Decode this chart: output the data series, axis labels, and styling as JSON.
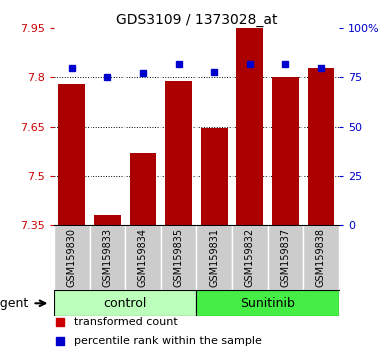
{
  "title": "GDS3109 / 1373028_at",
  "samples": [
    "GSM159830",
    "GSM159833",
    "GSM159834",
    "GSM159835",
    "GSM159831",
    "GSM159832",
    "GSM159837",
    "GSM159838"
  ],
  "red_values": [
    7.78,
    7.38,
    7.57,
    7.79,
    7.645,
    7.95,
    7.8,
    7.83
  ],
  "blue_values": [
    80,
    75,
    77,
    82,
    78,
    82,
    82,
    80
  ],
  "groups": [
    {
      "label": "control",
      "start": 0,
      "end": 4,
      "color": "#bbffbb"
    },
    {
      "label": "Sunitinib",
      "start": 4,
      "end": 8,
      "color": "#44ee44"
    }
  ],
  "group_label": "agent",
  "ylim_left": [
    7.35,
    7.95
  ],
  "ylim_right": [
    0,
    100
  ],
  "yticks_left": [
    7.35,
    7.5,
    7.65,
    7.8,
    7.95
  ],
  "ytick_labels_left": [
    "7.35",
    "7.5",
    "7.65",
    "7.8",
    "7.95"
  ],
  "yticks_right": [
    0,
    25,
    50,
    75,
    100
  ],
  "ytick_labels_right": [
    "0",
    "25",
    "50",
    "75",
    "100%"
  ],
  "hlines": [
    7.5,
    7.65,
    7.8
  ],
  "bar_color": "#aa0000",
  "dot_color": "#0000cc",
  "bar_width": 0.75,
  "background_color": "#ffffff",
  "plot_bg": "#ffffff",
  "tick_box_color": "#cccccc",
  "legend_items": [
    {
      "color": "#cc0000",
      "label": "transformed count"
    },
    {
      "color": "#0000cc",
      "label": "percentile rank within the sample"
    }
  ]
}
